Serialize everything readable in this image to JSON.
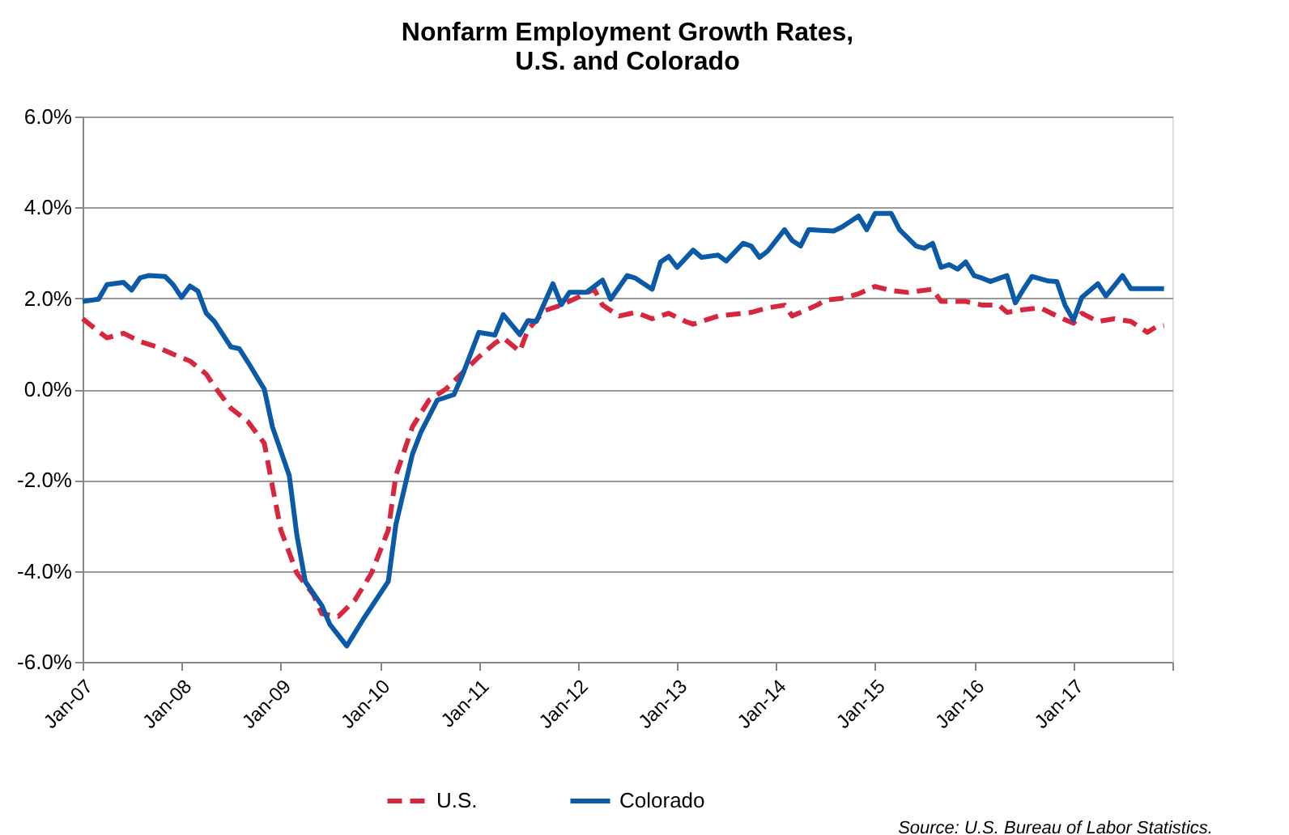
{
  "chart_data": {
    "type": "line",
    "title": "Nonfarm Employment Growth Rates,\nU.S. and Colorado",
    "xlim": [
      "2007-01",
      "2018-01"
    ],
    "xticks": [
      {
        "value": "2007-01",
        "label": "Jan-07"
      },
      {
        "value": "2008-01",
        "label": "Jan-08"
      },
      {
        "value": "2009-01",
        "label": "Jan-09"
      },
      {
        "value": "2010-01",
        "label": "Jan-10"
      },
      {
        "value": "2011-01",
        "label": "Jan-11"
      },
      {
        "value": "2012-01",
        "label": "Jan-12"
      },
      {
        "value": "2013-01",
        "label": "Jan-13"
      },
      {
        "value": "2014-01",
        "label": "Jan-14"
      },
      {
        "value": "2015-01",
        "label": "Jan-15"
      },
      {
        "value": "2016-01",
        "label": "Jan-16"
      },
      {
        "value": "2017-01",
        "label": "Jan-17"
      },
      {
        "value": "2018-01",
        "label": null
      }
    ],
    "ylim": [
      -6,
      6
    ],
    "yticks": [
      {
        "value": -6,
        "label": "-6.0%"
      },
      {
        "value": -4,
        "label": "-4.0%"
      },
      {
        "value": -2,
        "label": "-2.0%"
      },
      {
        "value": 0,
        "label": "0.0%"
      },
      {
        "value": 2,
        "label": "2.0%"
      },
      {
        "value": 4,
        "label": "4.0%"
      },
      {
        "value": 6,
        "label": "6.0%"
      }
    ],
    "grid": "y",
    "legend": "bottom",
    "annotations": [
      "Source: U.S. Bureau of Labor Statistics."
    ],
    "series": [
      {
        "name": "U.S.",
        "color": "#d7263d",
        "line_style": "dashed",
        "x": [
          "2007-01",
          "2007-03",
          "2007-04",
          "2007-06",
          "2007-08",
          "2007-10",
          "2007-12",
          "2008-02",
          "2008-04",
          "2008-05",
          "2008-07",
          "2008-09",
          "2008-11",
          "2008-12",
          "2009-01",
          "2009-03",
          "2009-05",
          "2009-06",
          "2009-08",
          "2009-10",
          "2009-12",
          "2010-02",
          "2010-03",
          "2010-05",
          "2010-07",
          "2010-09",
          "2010-11",
          "2011-01",
          "2011-03",
          "2011-04",
          "2011-06",
          "2011-07",
          "2011-09",
          "2011-11",
          "2012-01",
          "2012-03",
          "2012-04",
          "2012-06",
          "2012-08",
          "2012-10",
          "2012-12",
          "2013-02",
          "2013-03",
          "2013-06",
          "2013-10",
          "2013-12",
          "2014-02",
          "2014-03",
          "2014-06",
          "2014-07",
          "2014-09",
          "2014-11",
          "2015-01",
          "2015-03",
          "2015-05",
          "2015-08",
          "2015-09",
          "2015-12",
          "2016-02",
          "2016-04",
          "2016-05",
          "2016-07",
          "2016-09",
          "2016-11",
          "2017-01",
          "2017-02",
          "2017-04",
          "2017-06",
          "2017-08",
          "2017-10",
          "2017-11",
          "2017-12"
        ],
        "values": [
          1.55,
          1.27,
          1.13,
          1.23,
          1.05,
          0.93,
          0.77,
          0.62,
          0.33,
          0.06,
          -0.42,
          -0.71,
          -1.19,
          -2.14,
          -3.1,
          -4.05,
          -4.52,
          -4.94,
          -5.0,
          -4.64,
          -4.05,
          -3.1,
          -1.9,
          -0.83,
          -0.24,
          0,
          0.36,
          0.71,
          1.01,
          1.13,
          0.83,
          1.31,
          1.73,
          1.85,
          2.02,
          2.2,
          1.85,
          1.61,
          1.69,
          1.55,
          1.67,
          1.49,
          1.43,
          1.61,
          1.69,
          1.79,
          1.85,
          1.61,
          1.85,
          1.96,
          2.0,
          2.1,
          2.26,
          2.17,
          2.13,
          2.2,
          1.93,
          1.93,
          1.85,
          1.85,
          1.69,
          1.75,
          1.79,
          1.61,
          1.45,
          1.67,
          1.49,
          1.55,
          1.49,
          1.25,
          1.37,
          1.4
        ]
      },
      {
        "name": "Colorado",
        "color": "#0a5aa8",
        "line_style": "solid",
        "x": [
          "2007-01",
          "2007-03",
          "2007-04",
          "2007-06",
          "2007-07",
          "2007-08",
          "2007-09",
          "2007-11",
          "2007-12",
          "2008-01",
          "2008-02",
          "2008-03",
          "2008-04",
          "2008-05",
          "2008-07",
          "2008-08",
          "2008-09",
          "2008-11",
          "2008-12",
          "2009-02",
          "2009-03",
          "2009-04",
          "2009-06",
          "2009-07",
          "2009-09",
          "2009-11",
          "2010-02",
          "2010-03",
          "2010-05",
          "2010-06",
          "2010-08",
          "2010-10",
          "2010-11",
          "2011-01",
          "2011-03",
          "2011-04",
          "2011-06",
          "2011-07",
          "2011-08",
          "2011-10",
          "2011-11",
          "2011-12",
          "2012-02",
          "2012-04",
          "2012-05",
          "2012-07",
          "2012-08",
          "2012-10",
          "2012-11",
          "2012-12",
          "2013-01",
          "2013-03",
          "2013-04",
          "2013-06",
          "2013-07",
          "2013-09",
          "2013-10",
          "2013-11",
          "2013-12",
          "2014-02",
          "2014-03",
          "2014-04",
          "2014-05",
          "2014-08",
          "2014-09",
          "2014-11",
          "2014-12",
          "2015-01",
          "2015-03",
          "2015-04",
          "2015-06",
          "2015-07",
          "2015-08",
          "2015-09",
          "2015-10",
          "2015-11",
          "2015-12",
          "2016-01",
          "2016-02",
          "2016-03",
          "2016-05",
          "2016-06",
          "2016-07",
          "2016-08",
          "2016-10",
          "2016-11",
          "2016-12",
          "2017-01",
          "2017-02",
          "2017-04",
          "2017-05",
          "2017-07",
          "2017-08",
          "2017-12"
        ],
        "values": [
          1.93,
          1.98,
          2.3,
          2.35,
          2.18,
          2.45,
          2.5,
          2.48,
          2.3,
          2.02,
          2.27,
          2.16,
          1.67,
          1.49,
          0.93,
          0.89,
          0.6,
          0,
          -0.83,
          -1.9,
          -3.21,
          -4.23,
          -4.76,
          -5.18,
          -5.65,
          -5.06,
          -4.23,
          -2.98,
          -1.43,
          -0.95,
          -0.24,
          -0.12,
          0.3,
          1.25,
          1.19,
          1.64,
          1.2,
          1.51,
          1.49,
          2.32,
          1.86,
          2.13,
          2.13,
          2.4,
          1.98,
          2.5,
          2.44,
          2.2,
          2.8,
          2.92,
          2.68,
          3.06,
          2.9,
          2.95,
          2.82,
          3.21,
          3.15,
          2.9,
          3.04,
          3.51,
          3.27,
          3.15,
          3.51,
          3.48,
          3.57,
          3.81,
          3.51,
          3.87,
          3.87,
          3.51,
          3.15,
          3.1,
          3.21,
          2.68,
          2.74,
          2.64,
          2.8,
          2.5,
          2.44,
          2.37,
          2.5,
          1.9,
          2.2,
          2.48,
          2.38,
          2.37,
          1.85,
          1.52,
          2.02,
          2.32,
          2.05,
          2.5,
          2.21,
          2.21
        ]
      }
    ]
  }
}
